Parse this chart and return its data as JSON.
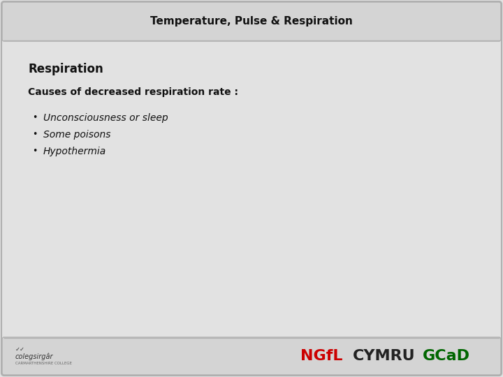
{
  "title": "Temperature, Pulse & Respiration",
  "title_fontsize": 11,
  "title_bg_color": "#d4d4d4",
  "main_bg_color": "#e2e2e2",
  "footer_bg_color": "#d4d4d4",
  "border_color": "#b0b0b0",
  "section_heading": "Respiration",
  "section_heading_fontsize": 12,
  "subheading": "Causes of decreased respiration rate :",
  "subheading_fontsize": 10,
  "bullet_items": [
    "Unconsciousness or sleep",
    "Some poisons",
    "Hypothermia"
  ],
  "bullet_fontsize": 10,
  "ngfl_text": "NGfL",
  "ngfl_color": "#cc0000",
  "cymru_text": "CYMRU",
  "cymru_color": "#222222",
  "gcad_text": "GCaD",
  "gcad_color": "#006600",
  "footer_brand_fontsize": 16,
  "logo_text": "colegsirgâr",
  "logo_subtext": "CARMARTHENSHIRE COLLEGE",
  "logo_fontsize": 7,
  "logo_subtext_fontsize": 4
}
